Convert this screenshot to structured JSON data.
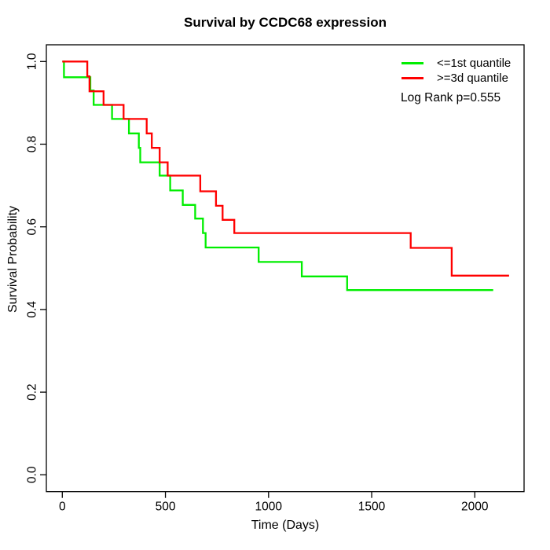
{
  "figure": {
    "background": "#ffffff"
  },
  "chart_data": {
    "type": "line",
    "subtype": "kaplan-meier-step",
    "title": "Survival by CCDC68 expression",
    "xlabel": "Time (Days)",
    "ylabel": "Survival Probability",
    "xlim": [
      0,
      2200
    ],
    "ylim": [
      0.0,
      1.0
    ],
    "x_ticks": [
      0,
      500,
      1000,
      1500,
      2000
    ],
    "y_ticks": [
      "0.0",
      "0.2",
      "0.4",
      "0.6",
      "0.8",
      "1.0"
    ],
    "grid": false,
    "legend_position": "top-right",
    "annotation": "Log Rank p=0.555",
    "axis_color": "#000000",
    "series": [
      {
        "name": "<=1st quantile",
        "color": "#00ee00",
        "steps": [
          [
            0,
            1.0
          ],
          [
            8,
            0.962
          ],
          [
            136,
            0.93
          ],
          [
            152,
            0.895
          ],
          [
            241,
            0.861
          ],
          [
            323,
            0.826
          ],
          [
            371,
            0.791
          ],
          [
            378,
            0.756
          ],
          [
            472,
            0.724
          ],
          [
            523,
            0.688
          ],
          [
            584,
            0.653
          ],
          [
            644,
            0.62
          ],
          [
            682,
            0.585
          ],
          [
            695,
            0.55
          ],
          [
            952,
            0.515
          ],
          [
            1161,
            0.48
          ],
          [
            1381,
            0.447
          ],
          [
            2089,
            0.447
          ]
        ]
      },
      {
        "name": ">=3d quantile",
        "color": "#ff0000",
        "steps": [
          [
            0,
            1.0
          ],
          [
            121,
            0.964
          ],
          [
            132,
            0.928
          ],
          [
            200,
            0.895
          ],
          [
            297,
            0.861
          ],
          [
            409,
            0.826
          ],
          [
            434,
            0.791
          ],
          [
            472,
            0.756
          ],
          [
            511,
            0.724
          ],
          [
            669,
            0.686
          ],
          [
            745,
            0.651
          ],
          [
            777,
            0.617
          ],
          [
            834,
            0.585
          ],
          [
            1689,
            0.549
          ],
          [
            1888,
            0.482
          ],
          [
            2166,
            0.482
          ]
        ]
      }
    ]
  }
}
